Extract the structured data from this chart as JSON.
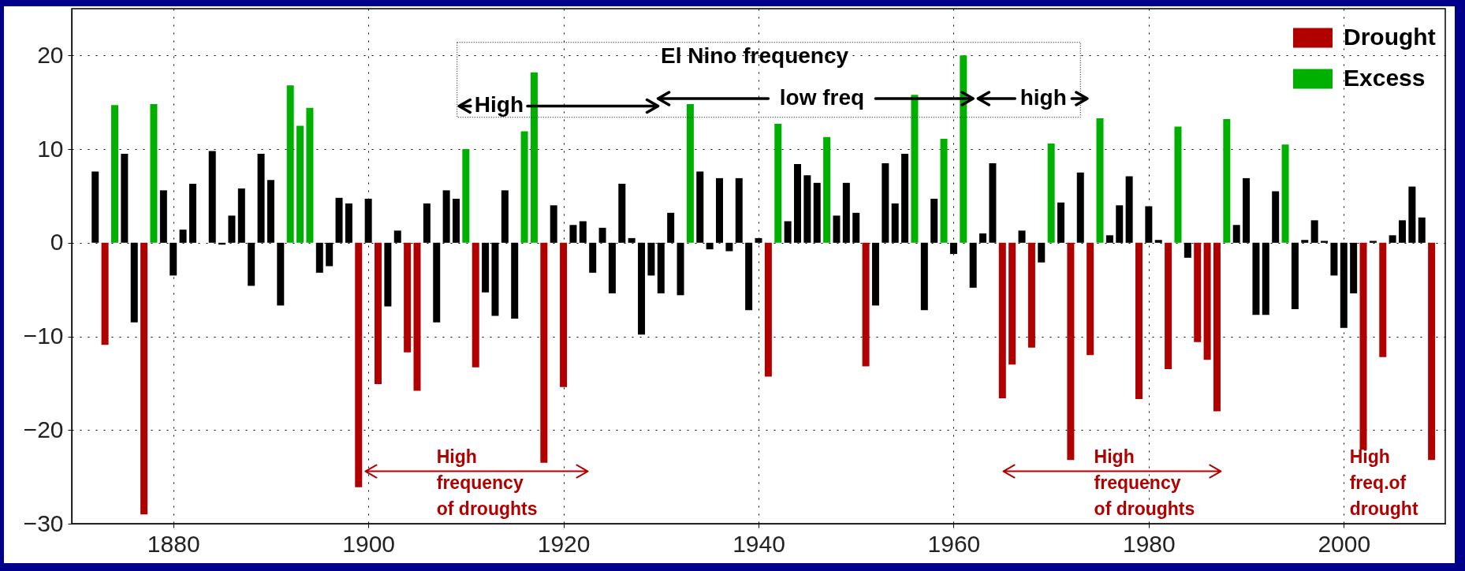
{
  "chart_data": {
    "type": "bar",
    "xlim": [
      1870,
      2010
    ],
    "xticks": [
      1880,
      1900,
      1920,
      1940,
      1960,
      1980,
      2000
    ],
    "ylim": [
      -30,
      25
    ],
    "yticks": [
      -30,
      -20,
      -10,
      0,
      10,
      20
    ],
    "grid": true,
    "legend": "top right",
    "series": [
      {
        "name": "Drought",
        "color": "#b00000",
        "x": [
          1873,
          1877,
          1899,
          1901,
          1904,
          1905,
          1911,
          1918,
          1920,
          1941,
          1951,
          1965,
          1966,
          1968,
          1972,
          1974,
          1979,
          1982,
          1985,
          1986,
          1987,
          2002,
          2004,
          2009
        ],
        "values": [
          -10.9,
          -29.0,
          -26.1,
          -15.1,
          -11.7,
          -15.8,
          -13.3,
          -23.5,
          -15.4,
          -14.3,
          -13.2,
          -16.6,
          -13.0,
          -11.2,
          -23.2,
          -12.0,
          -16.7,
          -13.5,
          -10.6,
          -12.5,
          -18.0,
          -22.1,
          -12.2,
          -23.2
        ]
      },
      {
        "name": "Excess",
        "color": "#00b000",
        "x": [
          1874,
          1878,
          1892,
          1893,
          1894,
          1910,
          1916,
          1917,
          1933,
          1942,
          1947,
          1956,
          1959,
          1961,
          1970,
          1975,
          1983,
          1988,
          1994
        ],
        "values": [
          14.7,
          14.8,
          16.8,
          12.5,
          14.4,
          10.0,
          11.9,
          18.2,
          14.8,
          12.7,
          11.3,
          15.8,
          11.1,
          20.0,
          10.6,
          13.3,
          12.4,
          13.2,
          10.5
        ]
      },
      {
        "color": "#000000",
        "x": [
          1872,
          1875,
          1876,
          1879,
          1880,
          1881,
          1882,
          1883,
          1884,
          1885,
          1886,
          1887,
          1888,
          1889,
          1890,
          1891,
          1895,
          1896,
          1897,
          1898,
          1900,
          1902,
          1903,
          1906,
          1907,
          1908,
          1909,
          1912,
          1913,
          1914,
          1915,
          1919,
          1921,
          1922,
          1923,
          1924,
          1925,
          1926,
          1927,
          1928,
          1929,
          1930,
          1931,
          1932,
          1934,
          1935,
          1936,
          1937,
          1938,
          1939,
          1940,
          1943,
          1944,
          1945,
          1946,
          1948,
          1949,
          1950,
          1952,
          1953,
          1954,
          1955,
          1957,
          1958,
          1960,
          1962,
          1963,
          1964,
          1967,
          1969,
          1971,
          1973,
          1976,
          1977,
          1978,
          1980,
          1981,
          1984,
          1989,
          1990,
          1991,
          1992,
          1993,
          1995,
          1996,
          1997,
          1998,
          1999,
          2000,
          2001,
          2003,
          2005,
          2006,
          2007,
          2008
        ],
        "values": [
          7.6,
          9.5,
          -8.5,
          5.6,
          -3.5,
          1.4,
          6.3,
          0,
          9.8,
          -0.2,
          2.9,
          5.8,
          -4.6,
          9.5,
          6.7,
          -6.7,
          -3.2,
          -2.5,
          4.8,
          4.2,
          4.7,
          -6.8,
          1.3,
          4.2,
          -8.5,
          5.6,
          4.7,
          -5.3,
          -7.8,
          5.6,
          -8.1,
          4.0,
          1.9,
          2.3,
          -3.2,
          1.6,
          -5.4,
          6.3,
          0.5,
          -9.8,
          -3.5,
          -5.4,
          3.2,
          -5.6,
          7.6,
          -0.7,
          6.9,
          -0.9,
          6.9,
          -7.2,
          0.5,
          2.3,
          8.4,
          7.2,
          6.4,
          2.9,
          6.4,
          3.2,
          -6.7,
          8.5,
          4.2,
          9.5,
          -7.2,
          4.7,
          -1.2,
          -4.8,
          1.0,
          8.5,
          1.3,
          -2.1,
          4.3,
          7.5,
          0.8,
          4.0,
          7.1,
          3.9,
          0.3,
          -1.6,
          1.9,
          6.9,
          -7.7,
          -7.7,
          5.5,
          -7.1,
          0.3,
          2.4,
          0.2,
          -3.5,
          -9.1,
          -5.4,
          0.2,
          0.8,
          2.4,
          6.0,
          2.7
        ]
      }
    ],
    "annotations": [
      "El Nino frequency",
      "High",
      "low freq",
      "high",
      "High\nfrequency\nof droughts",
      "High\nfrequency\nof droughts",
      "High\nfreq.of\ndrought"
    ]
  }
}
